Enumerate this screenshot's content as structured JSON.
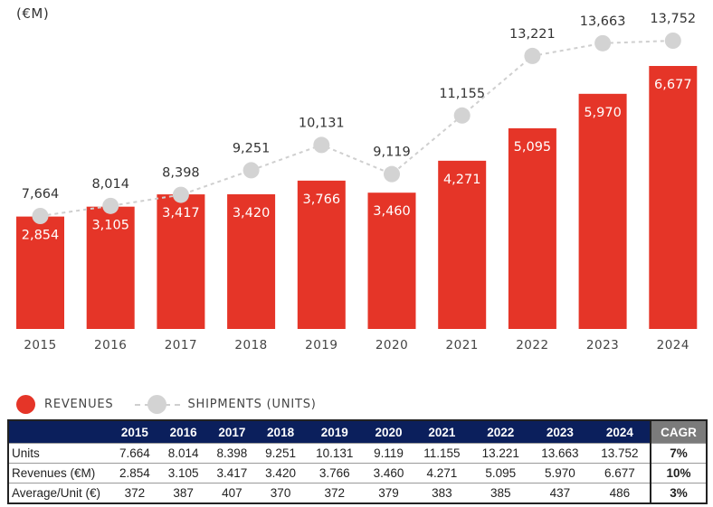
{
  "chart_data": {
    "type": "bar",
    "title": "",
    "unit_label": "(€M)",
    "xlabel": "",
    "ylabel": "",
    "categories": [
      "2015",
      "2016",
      "2017",
      "2018",
      "2019",
      "2020",
      "2021",
      "2022",
      "2023",
      "2024"
    ],
    "series": [
      {
        "name": "REVENUES",
        "type": "bar",
        "color": "#e53528",
        "values": [
          2854,
          3105,
          3417,
          3420,
          3766,
          3460,
          4271,
          5095,
          5970,
          6677
        ],
        "labels": [
          "2,854",
          "3,105",
          "3,417",
          "3,420",
          "3,766",
          "3,460",
          "4,271",
          "5,095",
          "5,970",
          "6,677"
        ]
      },
      {
        "name": "SHIPMENTS (UNITS)",
        "type": "line",
        "style": "dashed with circle markers",
        "color": "#d3d3d3",
        "values": [
          7664,
          8014,
          8398,
          9251,
          10131,
          9119,
          11155,
          13221,
          13663,
          13752
        ],
        "labels": [
          "7,664",
          "8,014",
          "8,398",
          "9,251",
          "10,131",
          "9,119",
          "11,155",
          "13,221",
          "13,663",
          "13,752"
        ]
      }
    ],
    "grid": false,
    "legend": "bottom-left"
  },
  "legend": {
    "revenues": "REVENUES",
    "shipments": "SHIPMENTS (UNITS)"
  },
  "table": {
    "columns": [
      "2015",
      "2016",
      "2017",
      "2018",
      "2019",
      "2020",
      "2021",
      "2022",
      "2023",
      "2024"
    ],
    "cagr_header": "CAGR",
    "rows": [
      {
        "label": "Units",
        "values": [
          "7.664",
          "8.014",
          "8.398",
          "9.251",
          "10.131",
          "9.119",
          "11.155",
          "13.221",
          "13.663",
          "13.752"
        ],
        "cagr": "7%"
      },
      {
        "label": "Revenues (€M)",
        "values": [
          "2.854",
          "3.105",
          "3.417",
          "3.420",
          "3.766",
          "3.460",
          "4.271",
          "5.095",
          "5.970",
          "6.677"
        ],
        "cagr": "10%"
      },
      {
        "label": "Average/Unit (€)",
        "values": [
          "372",
          "387",
          "407",
          "370",
          "372",
          "379",
          "383",
          "385",
          "437",
          "486"
        ],
        "cagr": "3%"
      }
    ]
  }
}
